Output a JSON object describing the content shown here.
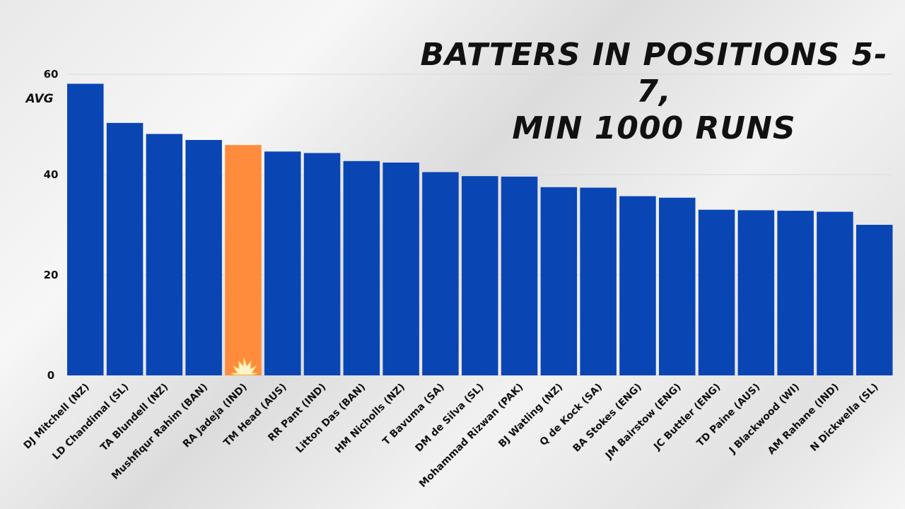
{
  "chart_data": {
    "type": "bar",
    "title": "BATTERS IN POSITIONS 5-7, MIN 1000 RUNS",
    "title_lines": [
      "BATTERS IN POSITIONS 5-7,",
      "MIN 1000 RUNS"
    ],
    "xlabel": "",
    "ylabel": "AVG",
    "ylim": [
      0,
      60
    ],
    "yticks": [
      0,
      20,
      40,
      60
    ],
    "grid": true,
    "categories": [
      "DJ Mitchell (NZ)",
      "LD Chandimal (SL)",
      "TA Blundell (NZ)",
      "Mushfiqur Rahim (BAN)",
      "RA Jadeja (IND)",
      "TM Head (AUS)",
      "RR Pant (IND)",
      "Litton Das (BAN)",
      "HM Nicholls (NZ)",
      "T Bavuma (SA)",
      "DM de Silva (SL)",
      "Mohammad Rizwan (PAK)",
      "BJ Watling (NZ)",
      "Q de Kock (SA)",
      "BA Stokes (ENG)",
      "JM Bairstow (ENG)",
      "JC Buttler (ENG)",
      "TD Paine (AUS)",
      "J Blackwood (WI)",
      "AM Rahane (IND)",
      "N Dickwella (SL)"
    ],
    "values": [
      58.1,
      50.3,
      48.1,
      46.9,
      45.9,
      44.6,
      44.3,
      42.7,
      42.4,
      40.5,
      39.7,
      39.6,
      37.5,
      37.4,
      35.7,
      35.4,
      33.0,
      32.9,
      32.8,
      32.6,
      30.0
    ],
    "highlight": "RA Jadeja (IND)",
    "colors": {
      "bar": "#0a45b4",
      "highlight": "#ff8c3c",
      "grid": "#d9d9d9",
      "text": "#111111"
    }
  }
}
